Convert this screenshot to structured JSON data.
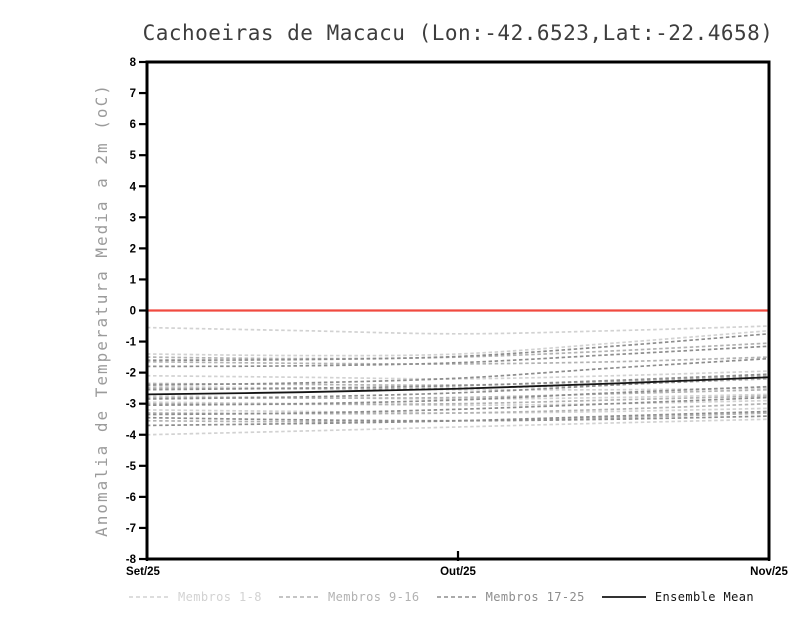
{
  "chart_data": {
    "type": "line",
    "title": "Cachoeiras de Macacu (Lon:-42.6523,Lat:-22.4658)",
    "ylabel": "Anomalia de Temperatura Media a 2m (oC)",
    "xlabel": "",
    "x_tick_labels": [
      "Set/25",
      "Out/25",
      "Nov/25"
    ],
    "x": [
      0,
      0.5,
      1,
      1.5,
      2
    ],
    "x_range": [
      0,
      2
    ],
    "ylim": [
      -8,
      8
    ],
    "y_tick_step": 1,
    "grid": false,
    "legend_position": "bottom",
    "colors": {
      "frame": "#000000",
      "title": "#3d3d3d",
      "axis_label": "#9b9b9b",
      "tick_label": "#000000",
      "zero_line": "#f04a40",
      "background": "#ffffff"
    },
    "zero_line_value": 0,
    "groups": [
      {
        "name": "Membros 1-8",
        "color": "#d2d2d2"
      },
      {
        "name": "Membros 9-16",
        "color": "#b2b2b2"
      },
      {
        "name": "Membros 17-25",
        "color": "#8d8d8d"
      }
    ],
    "members": [
      {
        "group": 0,
        "values": [
          -0.55,
          -0.65,
          -0.75,
          -0.65,
          -0.5
        ]
      },
      {
        "group": 0,
        "values": [
          -1.4,
          -1.45,
          -1.4,
          -1.05,
          -0.65
        ]
      },
      {
        "group": 1,
        "values": [
          -1.5,
          -1.55,
          -1.5,
          -1.3,
          -1.05
        ]
      },
      {
        "group": 2,
        "values": [
          -1.6,
          -1.58,
          -1.48,
          -1.15,
          -0.75
        ]
      },
      {
        "group": 1,
        "values": [
          -1.65,
          -1.7,
          -1.72,
          -1.65,
          -1.5
        ]
      },
      {
        "group": 2,
        "values": [
          -1.8,
          -1.78,
          -1.68,
          -1.42,
          -1.15
        ]
      },
      {
        "group": 0,
        "values": [
          -2.1,
          -2.15,
          -2.2,
          -2.1,
          -1.95
        ]
      },
      {
        "group": 1,
        "values": [
          -2.35,
          -2.38,
          -2.4,
          -2.28,
          -2.1
        ]
      },
      {
        "group": 2,
        "values": [
          -2.4,
          -2.33,
          -2.18,
          -1.85,
          -1.55
        ]
      },
      {
        "group": 0,
        "values": [
          -2.45,
          -2.5,
          -2.55,
          -2.55,
          -2.5
        ]
      },
      {
        "group": 1,
        "values": [
          -2.5,
          -2.52,
          -2.5,
          -2.38,
          -2.2
        ]
      },
      {
        "group": 2,
        "values": [
          -2.55,
          -2.5,
          -2.42,
          -2.25,
          -2.05
        ]
      },
      {
        "group": 0,
        "values": [
          -2.75,
          -2.8,
          -2.85,
          -2.8,
          -2.7
        ]
      },
      {
        "group": 1,
        "values": [
          -2.8,
          -2.82,
          -2.8,
          -2.68,
          -2.55
        ]
      },
      {
        "group": 2,
        "values": [
          -2.85,
          -2.78,
          -2.65,
          -2.4,
          -2.15
        ]
      },
      {
        "group": 0,
        "values": [
          -2.95,
          -3.0,
          -3.05,
          -3.0,
          -2.9
        ]
      },
      {
        "group": 1,
        "values": [
          -3.0,
          -3.02,
          -3.0,
          -2.88,
          -2.75
        ]
      },
      {
        "group": 2,
        "values": [
          -3.05,
          -3.0,
          -2.88,
          -2.65,
          -2.45
        ]
      },
      {
        "group": 0,
        "values": [
          -3.2,
          -3.25,
          -3.3,
          -3.25,
          -3.15
        ]
      },
      {
        "group": 1,
        "values": [
          -3.3,
          -3.32,
          -3.3,
          -3.18,
          -3.0
        ]
      },
      {
        "group": 2,
        "values": [
          -3.35,
          -3.3,
          -3.18,
          -3.0,
          -2.8
        ]
      },
      {
        "group": 2,
        "values": [
          -3.45,
          -3.52,
          -3.55,
          -3.5,
          -3.4
        ]
      },
      {
        "group": 1,
        "values": [
          -3.55,
          -3.58,
          -3.55,
          -3.45,
          -3.3
        ]
      },
      {
        "group": 2,
        "values": [
          -3.7,
          -3.64,
          -3.55,
          -3.4,
          -3.25
        ]
      },
      {
        "group": 0,
        "values": [
          -4.0,
          -3.88,
          -3.75,
          -3.62,
          -3.5
        ]
      }
    ],
    "ensemble_mean": {
      "name": "Ensemble Mean",
      "color": "#141414",
      "values": [
        -2.7,
        -2.63,
        -2.52,
        -2.35,
        -2.15
      ]
    }
  }
}
